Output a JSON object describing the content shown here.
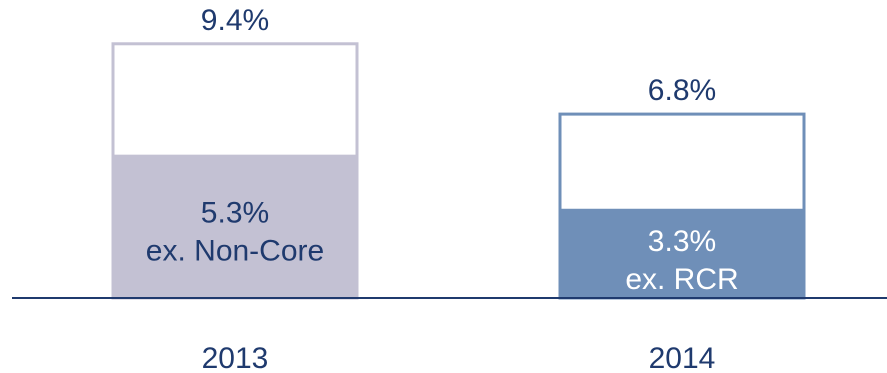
{
  "chart_data": {
    "type": "bar",
    "categories": [
      "2013",
      "2014"
    ],
    "series": [
      {
        "values": [
          9.4,
          6.8
        ],
        "labels": [
          "9.4%",
          "6.8%"
        ]
      },
      {
        "values": [
          5.3,
          3.3
        ],
        "labels": [
          "5.3%",
          "3.3%"
        ],
        "sublabels": [
          "ex. Non-Core",
          "ex. RCR"
        ]
      }
    ],
    "title": "",
    "xlabel": "",
    "ylabel": "",
    "ylim": [
      0,
      10
    ],
    "grid": false,
    "legend": "none"
  },
  "colors": {
    "axis": "#1f3a6e",
    "label_text": "#1f3a6e",
    "inner_text_2013": "#1f3a6e",
    "inner_text_2014": "#ffffff",
    "fill_2013": "#c3c1d3",
    "fill_2014": "#6f8fb8",
    "border_2013": "#c3c1d3",
    "border_2014": "#6f8fb8",
    "outer_fill": "#ffffff"
  }
}
